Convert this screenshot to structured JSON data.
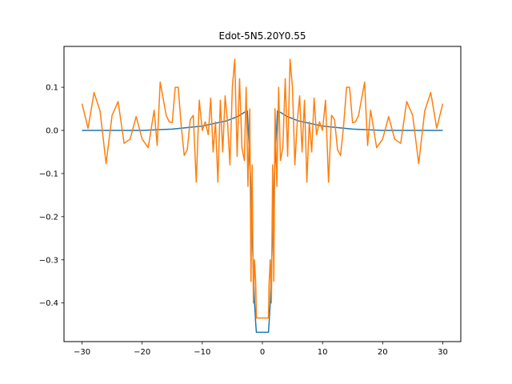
{
  "chart_data": {
    "type": "line",
    "title": "Edot-5N5.20Y0.55",
    "xlabel": "",
    "ylabel": "",
    "xlim": [
      -33,
      33
    ],
    "ylim": [
      -0.4896,
      0.1948
    ],
    "xticks": [
      -30,
      -20,
      -10,
      0,
      10,
      20,
      30
    ],
    "xtick_labels": [
      "−30",
      "−20",
      "−10",
      "0",
      "10",
      "20",
      "30"
    ],
    "yticks": [
      -0.4,
      -0.3,
      -0.2,
      -0.1,
      0.0,
      0.1
    ],
    "ytick_labels": [
      "−0.4",
      "−0.3",
      "−0.2",
      "−0.1",
      "0.0",
      "0.1"
    ],
    "grid": false,
    "legend": "none",
    "series": [
      {
        "color": "#1f77b4",
        "x": [
          -30,
          -20,
          -15,
          -10,
          -8,
          -6,
          -4,
          -3,
          -2.5,
          -2,
          -1.6,
          -1.3,
          -1.1,
          -1,
          1,
          1.1,
          1.3,
          1.6,
          2,
          2.5,
          3,
          4,
          6,
          8,
          10,
          15,
          20,
          30
        ],
        "y": [
          0.0,
          0.0,
          0.003,
          0.01,
          0.016,
          0.022,
          0.033,
          0.042,
          0.045,
          -0.1,
          -0.28,
          -0.4,
          -0.45,
          -0.468,
          -0.468,
          -0.45,
          -0.4,
          -0.28,
          -0.1,
          0.045,
          0.042,
          0.033,
          0.022,
          0.016,
          0.01,
          0.003,
          0.0,
          0.0
        ]
      },
      {
        "color": "#ff7f0e",
        "x": [
          -30,
          -29,
          -28,
          -27,
          -26,
          -25,
          -24,
          -23,
          -22,
          -21,
          -20,
          -19,
          -18,
          -17.5,
          -17,
          -16,
          -15.5,
          -15,
          -14.5,
          -14,
          -13.5,
          -13,
          -12.5,
          -12,
          -11.5,
          -11,
          -10.5,
          -10,
          -9.5,
          -9,
          -8.6,
          -8.2,
          -7.8,
          -7.4,
          -7,
          -6.6,
          -6.2,
          -5.8,
          -5.4,
          -5,
          -4.6,
          -4.2,
          -3.8,
          -3.4,
          -3,
          -2.7,
          -2.4,
          -2.1,
          -1.9,
          -1.7,
          -1.5,
          -1.3,
          -1.1,
          -1,
          1,
          1.1,
          1.3,
          1.5,
          1.7,
          1.9,
          2.1,
          2.4,
          2.7,
          3,
          3.4,
          3.8,
          4.2,
          4.6,
          5,
          5.4,
          5.8,
          6.2,
          6.6,
          7,
          7.4,
          7.8,
          8.2,
          8.6,
          9,
          9.5,
          10,
          10.5,
          11,
          11.5,
          12,
          12.5,
          13,
          13.5,
          14,
          14.5,
          15,
          15.5,
          16,
          17,
          17.5,
          18,
          19,
          20,
          21,
          22,
          23,
          24,
          25,
          26,
          27,
          28,
          29,
          30
        ],
        "y": [
          0.062,
          0.005,
          0.088,
          0.045,
          -0.077,
          0.035,
          0.067,
          -0.03,
          -0.02,
          0.032,
          -0.02,
          -0.04,
          0.047,
          -0.035,
          0.112,
          0.035,
          0.02,
          0.018,
          0.1,
          0.1,
          0.01,
          -0.058,
          -0.045,
          0.025,
          0.035,
          -0.12,
          0.07,
          0.0,
          0.02,
          -0.01,
          0.075,
          -0.05,
          0.02,
          -0.12,
          0.07,
          -0.05,
          0.08,
          0.02,
          -0.08,
          0.1,
          0.165,
          -0.06,
          0.12,
          -0.04,
          -0.07,
          0.1,
          -0.13,
          0.05,
          -0.35,
          -0.08,
          -0.4,
          -0.3,
          -0.36,
          -0.435,
          -0.435,
          -0.36,
          -0.3,
          -0.4,
          -0.08,
          -0.35,
          0.05,
          -0.13,
          0.1,
          -0.07,
          -0.04,
          0.12,
          -0.06,
          0.165,
          0.1,
          -0.08,
          0.02,
          0.08,
          -0.05,
          0.07,
          -0.12,
          0.02,
          -0.05,
          0.075,
          -0.01,
          0.02,
          0.0,
          0.07,
          -0.12,
          0.035,
          0.025,
          -0.045,
          -0.058,
          0.01,
          0.1,
          0.1,
          0.018,
          0.02,
          0.035,
          0.112,
          -0.035,
          0.047,
          -0.04,
          -0.02,
          0.032,
          -0.02,
          -0.03,
          0.067,
          0.035,
          -0.077,
          0.045,
          0.088,
          0.005,
          0.062
        ]
      }
    ]
  }
}
